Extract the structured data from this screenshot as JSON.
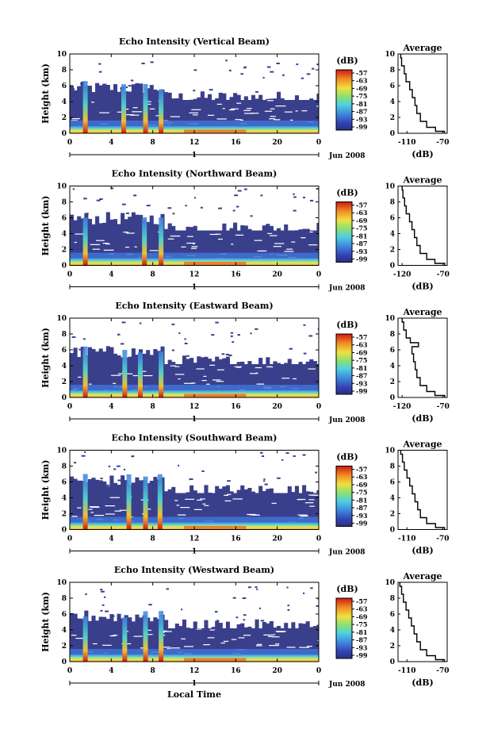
{
  "figure": {
    "xlabel": "Local Time",
    "date_label": "Jun 2008",
    "day_label": "1",
    "avg_title": "Average",
    "avg_xlabel": "(dB)",
    "cbar_title": "(dB)",
    "ylabel": "Height (km)"
  },
  "chart_data": [
    {
      "type": "heatmap",
      "title": "Echo Intensity (Vertical Beam)",
      "xlabel": "",
      "ylabel": "Height (km)",
      "xlim": [
        0,
        24
      ],
      "ylim": [
        0,
        10
      ],
      "x_ticks": [
        "0",
        "4",
        "8",
        "12",
        "16",
        "20",
        "0"
      ],
      "y_ticks": [
        "0",
        "2",
        "4",
        "6",
        "8",
        "10"
      ],
      "colorbar": {
        "label": "(dB)",
        "ticks": [
          "-57",
          "-63",
          "-69",
          "-75",
          "-81",
          "-87",
          "-93",
          "-99"
        ]
      },
      "spikes_hours": [
        1.5,
        5.2,
        7.3,
        8.8
      ],
      "clutter_top_km": 4.2,
      "average_profile": {
        "title": "Average",
        "xlabel": "(dB)",
        "xlim": [
          -120,
          -65
        ],
        "x_ticks": [
          "-110",
          "-70"
        ],
        "heights": [
          0,
          0.5,
          1,
          2,
          3,
          4,
          5,
          6,
          7,
          8,
          9,
          10
        ],
        "values": [
          -68,
          -78,
          -88,
          -95,
          -99,
          -101,
          -104,
          -107,
          -111,
          -113,
          -116,
          -117
        ]
      }
    },
    {
      "type": "heatmap",
      "title": "Echo Intensity (Northward Beam)",
      "xlabel": "",
      "ylabel": "Height (km)",
      "xlim": [
        0,
        24
      ],
      "ylim": [
        0,
        10
      ],
      "x_ticks": [
        "0",
        "4",
        "8",
        "12",
        "16",
        "20",
        "0"
      ],
      "y_ticks": [
        "0",
        "2",
        "4",
        "6",
        "8",
        "10"
      ],
      "colorbar": {
        "label": "(dB)",
        "ticks": [
          "-57",
          "-63",
          "-69",
          "-75",
          "-81",
          "-87",
          "-93",
          "-99"
        ]
      },
      "spikes_hours": [
        1.5,
        7.2,
        8.8
      ],
      "clutter_top_km": 4.4,
      "average_profile": {
        "title": "Average",
        "xlabel": "(dB)",
        "xlim": [
          -125,
          -65
        ],
        "x_ticks": [
          "-120",
          "-70"
        ],
        "heights": [
          0,
          0.5,
          1,
          2,
          3,
          4,
          5,
          6,
          7,
          8,
          9,
          10
        ],
        "values": [
          -68,
          -80,
          -90,
          -98,
          -102,
          -105,
          -108,
          -111,
          -115,
          -117,
          -119,
          -120
        ]
      }
    },
    {
      "type": "heatmap",
      "title": "Echo Intensity (Eastward Beam)",
      "xlabel": "",
      "ylabel": "Height (km)",
      "xlim": [
        0,
        24
      ],
      "ylim": [
        0,
        10
      ],
      "x_ticks": [
        "0",
        "4",
        "8",
        "12",
        "16",
        "20",
        "0"
      ],
      "y_ticks": [
        "0",
        "2",
        "4",
        "6",
        "8",
        "10"
      ],
      "colorbar": {
        "label": "(dB)",
        "ticks": [
          "-57",
          "-63",
          "-69",
          "-75",
          "-81",
          "-87",
          "-93",
          "-99"
        ]
      },
      "spikes_hours": [
        1.5,
        5.3,
        6.8,
        8.8
      ],
      "clutter_top_km": 4.2,
      "average_profile": {
        "title": "Average",
        "xlabel": "(dB)",
        "xlim": [
          -125,
          -65
        ],
        "x_ticks": [
          "-120",
          "-70"
        ],
        "heights": [
          0,
          0.5,
          1,
          2,
          3,
          4,
          5,
          6,
          6.8,
          7,
          8,
          9,
          10
        ],
        "values": [
          -68,
          -80,
          -90,
          -98,
          -102,
          -104,
          -106,
          -108,
          -100,
          -110,
          -115,
          -118,
          -120
        ]
      }
    },
    {
      "type": "heatmap",
      "title": "Echo Intensity (Southward Beam)",
      "xlabel": "",
      "ylabel": "Height (km)",
      "xlim": [
        0,
        24
      ],
      "ylim": [
        0,
        10
      ],
      "x_ticks": [
        "0",
        "4",
        "8",
        "12",
        "16",
        "20",
        "0"
      ],
      "y_ticks": [
        "0",
        "2",
        "4",
        "6",
        "8",
        "10"
      ],
      "colorbar": {
        "label": "(dB)",
        "ticks": [
          "-57",
          "-63",
          "-69",
          "-75",
          "-81",
          "-87",
          "-93",
          "-99"
        ]
      },
      "spikes_hours": [
        1.5,
        5.7,
        7.3,
        8.7
      ],
      "clutter_top_km": 4.6,
      "average_profile": {
        "title": "Average",
        "xlabel": "(dB)",
        "xlim": [
          -120,
          -65
        ],
        "x_ticks": [
          "-110",
          "-70"
        ],
        "heights": [
          0,
          0.5,
          1,
          2,
          3,
          4,
          5,
          6,
          7,
          8,
          9,
          10
        ],
        "values": [
          -68,
          -78,
          -88,
          -95,
          -98,
          -101,
          -104,
          -107,
          -110,
          -113,
          -115,
          -117
        ]
      }
    },
    {
      "type": "heatmap",
      "title": "Echo Intensity (Westward Beam)",
      "xlabel": "Local Time",
      "ylabel": "Height (km)",
      "xlim": [
        0,
        24
      ],
      "ylim": [
        0,
        10
      ],
      "x_ticks": [
        "0",
        "4",
        "8",
        "12",
        "16",
        "20",
        "0"
      ],
      "y_ticks": [
        "0",
        "2",
        "4",
        "6",
        "8",
        "10"
      ],
      "colorbar": {
        "label": "(dB)",
        "ticks": [
          "-57",
          "-63",
          "-69",
          "-75",
          "-81",
          "-87",
          "-93",
          "-99"
        ]
      },
      "spikes_hours": [
        1.5,
        5.3,
        7.3,
        8.8
      ],
      "clutter_top_km": 4.2,
      "average_profile": {
        "title": "Average",
        "xlabel": "(dB)",
        "xlim": [
          -120,
          -65
        ],
        "x_ticks": [
          "-110",
          "-70"
        ],
        "heights": [
          0,
          0.5,
          1,
          2,
          3,
          4,
          5,
          6,
          7,
          8,
          9,
          10
        ],
        "values": [
          -68,
          -78,
          -88,
          -95,
          -99,
          -102,
          -105,
          -108,
          -111,
          -114,
          -116,
          -118
        ]
      }
    }
  ]
}
